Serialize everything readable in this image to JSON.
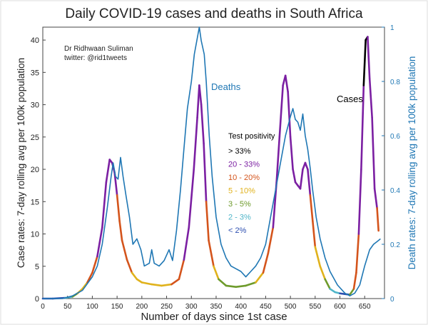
{
  "chart_data": {
    "type": "line",
    "title": "Daily COVID-19 cases and deaths in South Africa",
    "credit": [
      "Dr Ridhwaan Suliman",
      "twitter: @rid1tweets"
    ],
    "xlabel": "Number of days since 1st case",
    "ylabel_left": "Case rates: 7-day rolling avg per 100k population",
    "ylabel_right": "Death rates: 7-day rolling avg per 100k population",
    "xlim": [
      0,
      690
    ],
    "ylim_left": [
      0,
      42
    ],
    "ylim_right": [
      0,
      1
    ],
    "x_ticks": [
      0,
      50,
      100,
      150,
      200,
      250,
      300,
      350,
      400,
      450,
      500,
      550,
      600,
      650
    ],
    "y_ticks_left": [
      0,
      5,
      10,
      15,
      20,
      25,
      30,
      35,
      40
    ],
    "y_ticks_right": [
      0,
      0.2,
      0.4,
      0.6,
      0.8,
      1
    ],
    "series_labels": [
      {
        "text": "Deaths",
        "color": "#1f77b4"
      },
      {
        "text": "Cases",
        "color": "#000000"
      }
    ],
    "legend": {
      "title": "Test positivity",
      "position": "center",
      "entries": [
        {
          "label": "> 33%",
          "color": "#000000"
        },
        {
          "label": "20 - 33%",
          "color": "#7b1fa2"
        },
        {
          "label": "10 - 20%",
          "color": "#d4541c"
        },
        {
          "label": "5  - 10%",
          "color": "#e0b21c"
        },
        {
          "label": "3  -  5%",
          "color": "#6e9b2c"
        },
        {
          "label": "2  -  3%",
          "color": "#4fb5c8"
        },
        {
          "label": "< 2%",
          "color": "#2d4fb0"
        }
      ]
    },
    "series": [
      {
        "name": "Cases",
        "axis": "left",
        "color_by": "test_positivity",
        "points": [
          [
            0,
            0,
            "<2%"
          ],
          [
            20,
            0,
            "<2%"
          ],
          [
            45,
            0.1,
            "<2%"
          ],
          [
            60,
            0.3,
            "2-3%"
          ],
          [
            70,
            0.8,
            "3-5%"
          ],
          [
            80,
            1.5,
            "5-10%"
          ],
          [
            90,
            2.5,
            "5-10%"
          ],
          [
            100,
            4,
            "10-20%"
          ],
          [
            110,
            6.5,
            "10-20%"
          ],
          [
            120,
            11,
            "20-33%"
          ],
          [
            128,
            18,
            "20-33%"
          ],
          [
            135,
            21.5,
            "20-33%"
          ],
          [
            140,
            21,
            "20-33%"
          ],
          [
            145,
            19.5,
            "20-33%"
          ],
          [
            150,
            16,
            "20-33%"
          ],
          [
            155,
            12,
            "10-20%"
          ],
          [
            160,
            9,
            "10-20%"
          ],
          [
            170,
            6,
            "10-20%"
          ],
          [
            180,
            4,
            "10-20%"
          ],
          [
            190,
            3,
            "5-10%"
          ],
          [
            200,
            2.5,
            "5-10%"
          ],
          [
            220,
            2.2,
            "5-10%"
          ],
          [
            240,
            2,
            "5-10%"
          ],
          [
            260,
            2.2,
            "5-10%"
          ],
          [
            275,
            3,
            "10-20%"
          ],
          [
            285,
            6,
            "10-20%"
          ],
          [
            295,
            11,
            "20-33%"
          ],
          [
            305,
            20,
            "20-33%"
          ],
          [
            312,
            28,
            "20-33%"
          ],
          [
            316,
            33,
            "20-33%"
          ],
          [
            320,
            30,
            "20-33%"
          ],
          [
            325,
            24,
            "20-33%"
          ],
          [
            330,
            15,
            "20-33%"
          ],
          [
            335,
            9,
            "10-20%"
          ],
          [
            345,
            5,
            "10-20%"
          ],
          [
            355,
            3,
            "5-10%"
          ],
          [
            370,
            2,
            "3-5%"
          ],
          [
            390,
            1.8,
            "3-5%"
          ],
          [
            410,
            2,
            "3-5%"
          ],
          [
            430,
            2.5,
            "3-5%"
          ],
          [
            445,
            4,
            "5-10%"
          ],
          [
            455,
            7,
            "10-20%"
          ],
          [
            465,
            11,
            "10-20%"
          ],
          [
            472,
            18,
            "20-33%"
          ],
          [
            478,
            25,
            "20-33%"
          ],
          [
            485,
            33,
            "20-33%"
          ],
          [
            490,
            34.5,
            "20-33%"
          ],
          [
            495,
            32,
            "20-33%"
          ],
          [
            500,
            25,
            "20-33%"
          ],
          [
            505,
            20,
            "20-33%"
          ],
          [
            510,
            18,
            "20-33%"
          ],
          [
            515,
            17.5,
            "20-33%"
          ],
          [
            520,
            17,
            "20-33%"
          ],
          [
            525,
            20,
            "20-33%"
          ],
          [
            530,
            21,
            "20-33%"
          ],
          [
            535,
            20,
            "20-33%"
          ],
          [
            540,
            16,
            "20-33%"
          ],
          [
            545,
            12,
            "10-20%"
          ],
          [
            550,
            8,
            "10-20%"
          ],
          [
            560,
            5,
            "5-10%"
          ],
          [
            570,
            3,
            "5-10%"
          ],
          [
            580,
            1.5,
            "3-5%"
          ],
          [
            590,
            1,
            "2-3%"
          ],
          [
            600,
            0.8,
            "2-3%"
          ],
          [
            610,
            0.7,
            "<2%"
          ],
          [
            620,
            0.6,
            "<2%"
          ],
          [
            628,
            1.5,
            "3-5%"
          ],
          [
            633,
            4,
            "10-20%"
          ],
          [
            638,
            10,
            "10-20%"
          ],
          [
            643,
            20,
            "20-33%"
          ],
          [
            648,
            33,
            "20-33%"
          ],
          [
            652,
            40,
            ">33%"
          ],
          [
            656,
            40.5,
            ">33%"
          ],
          [
            660,
            34,
            "20-33%"
          ],
          [
            665,
            28,
            "20-33%"
          ],
          [
            670,
            17,
            "20-33%"
          ],
          [
            675,
            14,
            "20-33%"
          ],
          [
            678,
            10.5,
            "10-20%"
          ]
        ]
      },
      {
        "name": "Deaths",
        "axis": "right",
        "color": "#1f77b4",
        "points": [
          [
            0,
            0
          ],
          [
            40,
            0
          ],
          [
            60,
            0.01
          ],
          [
            80,
            0.03
          ],
          [
            100,
            0.08
          ],
          [
            110,
            0.12
          ],
          [
            120,
            0.2
          ],
          [
            130,
            0.33
          ],
          [
            138,
            0.45
          ],
          [
            142,
            0.5
          ],
          [
            147,
            0.45
          ],
          [
            152,
            0.44
          ],
          [
            157,
            0.52
          ],
          [
            162,
            0.45
          ],
          [
            168,
            0.38
          ],
          [
            175,
            0.3
          ],
          [
            182,
            0.2
          ],
          [
            190,
            0.22
          ],
          [
            198,
            0.18
          ],
          [
            205,
            0.12
          ],
          [
            215,
            0.13
          ],
          [
            220,
            0.18
          ],
          [
            225,
            0.13
          ],
          [
            235,
            0.12
          ],
          [
            245,
            0.14
          ],
          [
            255,
            0.18
          ],
          [
            262,
            0.14
          ],
          [
            270,
            0.25
          ],
          [
            278,
            0.4
          ],
          [
            285,
            0.55
          ],
          [
            292,
            0.7
          ],
          [
            300,
            0.8
          ],
          [
            306,
            0.9
          ],
          [
            312,
            0.96
          ],
          [
            316,
            1.0
          ],
          [
            320,
            0.95
          ],
          [
            326,
            0.9
          ],
          [
            330,
            0.8
          ],
          [
            336,
            0.6
          ],
          [
            342,
            0.45
          ],
          [
            350,
            0.3
          ],
          [
            360,
            0.2
          ],
          [
            370,
            0.15
          ],
          [
            380,
            0.12
          ],
          [
            390,
            0.11
          ],
          [
            400,
            0.1
          ],
          [
            410,
            0.08
          ],
          [
            420,
            0.1
          ],
          [
            430,
            0.12
          ],
          [
            440,
            0.15
          ],
          [
            450,
            0.2
          ],
          [
            460,
            0.3
          ],
          [
            470,
            0.4
          ],
          [
            480,
            0.5
          ],
          [
            490,
            0.6
          ],
          [
            500,
            0.67
          ],
          [
            505,
            0.7
          ],
          [
            510,
            0.66
          ],
          [
            515,
            0.65
          ],
          [
            520,
            0.62
          ],
          [
            525,
            0.68
          ],
          [
            530,
            0.6
          ],
          [
            535,
            0.55
          ],
          [
            540,
            0.48
          ],
          [
            545,
            0.4
          ],
          [
            552,
            0.3
          ],
          [
            560,
            0.22
          ],
          [
            570,
            0.15
          ],
          [
            580,
            0.1
          ],
          [
            595,
            0.05
          ],
          [
            610,
            0.02
          ],
          [
            620,
            0.01
          ],
          [
            630,
            0.02
          ],
          [
            640,
            0.05
          ],
          [
            650,
            0.12
          ],
          [
            660,
            0.18
          ],
          [
            668,
            0.2
          ],
          [
            675,
            0.21
          ],
          [
            682,
            0.22
          ]
        ]
      }
    ]
  }
}
